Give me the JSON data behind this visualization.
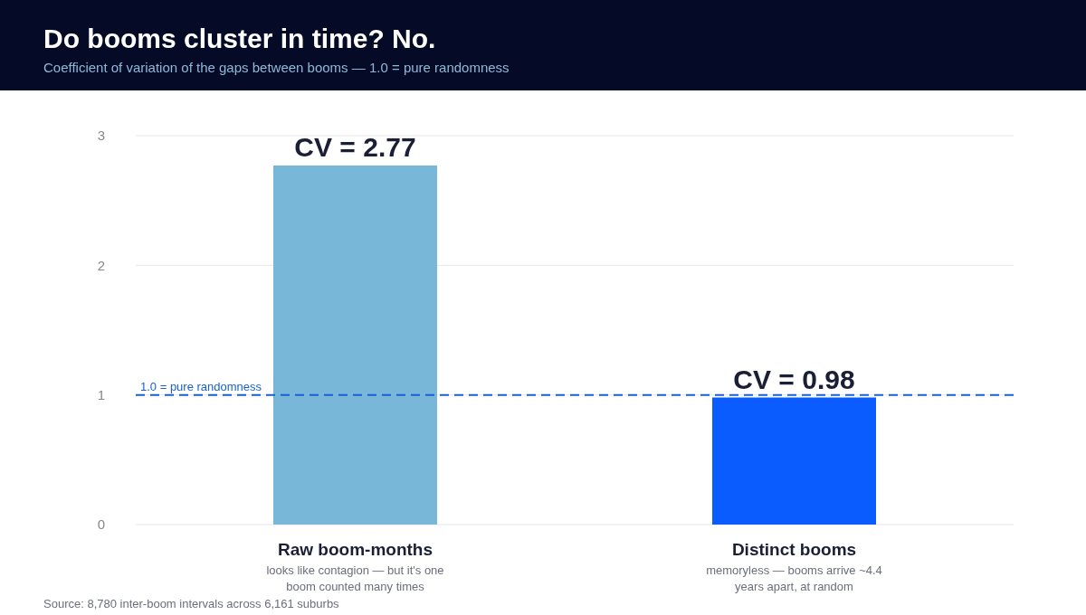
{
  "chart_data": {
    "type": "bar",
    "title": "Do booms cluster in time? No.",
    "subtitle": "Coefficient of variation of the gaps between booms — 1.0 = pure randomness",
    "categories": [
      "Raw boom-months",
      "Distinct booms"
    ],
    "values": [
      2.77,
      0.98
    ],
    "colors": [
      "#78b7d8",
      "#0a5cff"
    ],
    "value_labels": [
      "CV = 2.77",
      "CV = 0.98"
    ],
    "ylim": [
      0,
      3
    ],
    "yticks": [
      0,
      1,
      2,
      3
    ],
    "grid": "y",
    "ref_lines": [
      {
        "axis": "y",
        "value": 1,
        "label": "1.0 = pure randomness",
        "color": "#1a5fd6",
        "line_style": "dashed"
      }
    ],
    "annotations": [
      "looks like contagion — but it's one boom counted many times",
      "memoryless — booms arrive ~4.4 years apart, at random",
      "Source: 8,780 inter-boom intervals across 6,161 suburbs"
    ]
  }
}
